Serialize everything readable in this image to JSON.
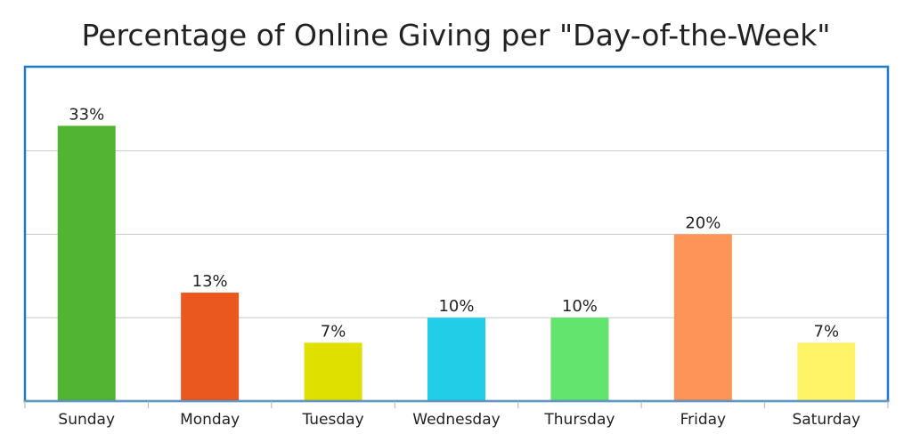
{
  "chart_data": {
    "type": "bar",
    "title": "Percentage of Online Giving per \"Day-of-the-Week\"",
    "xlabel": "",
    "ylabel": "",
    "categories": [
      "Sunday",
      "Monday",
      "Tuesday",
      "Wednesday",
      "Thursday",
      "Friday",
      "Saturday"
    ],
    "values": [
      33,
      13,
      7,
      10,
      10,
      20,
      7
    ],
    "data_labels": [
      "33%",
      "13%",
      "7%",
      "10%",
      "10%",
      "20%",
      "7%"
    ],
    "colors": [
      "#52b433",
      "#ea581f",
      "#dfe000",
      "#22cde8",
      "#62e46e",
      "#ff9459",
      "#fff468"
    ],
    "frame_color": "#1f7ac8",
    "grid": true,
    "ylim": [
      0,
      35
    ],
    "gridlines": [
      10,
      20,
      30
    ]
  }
}
